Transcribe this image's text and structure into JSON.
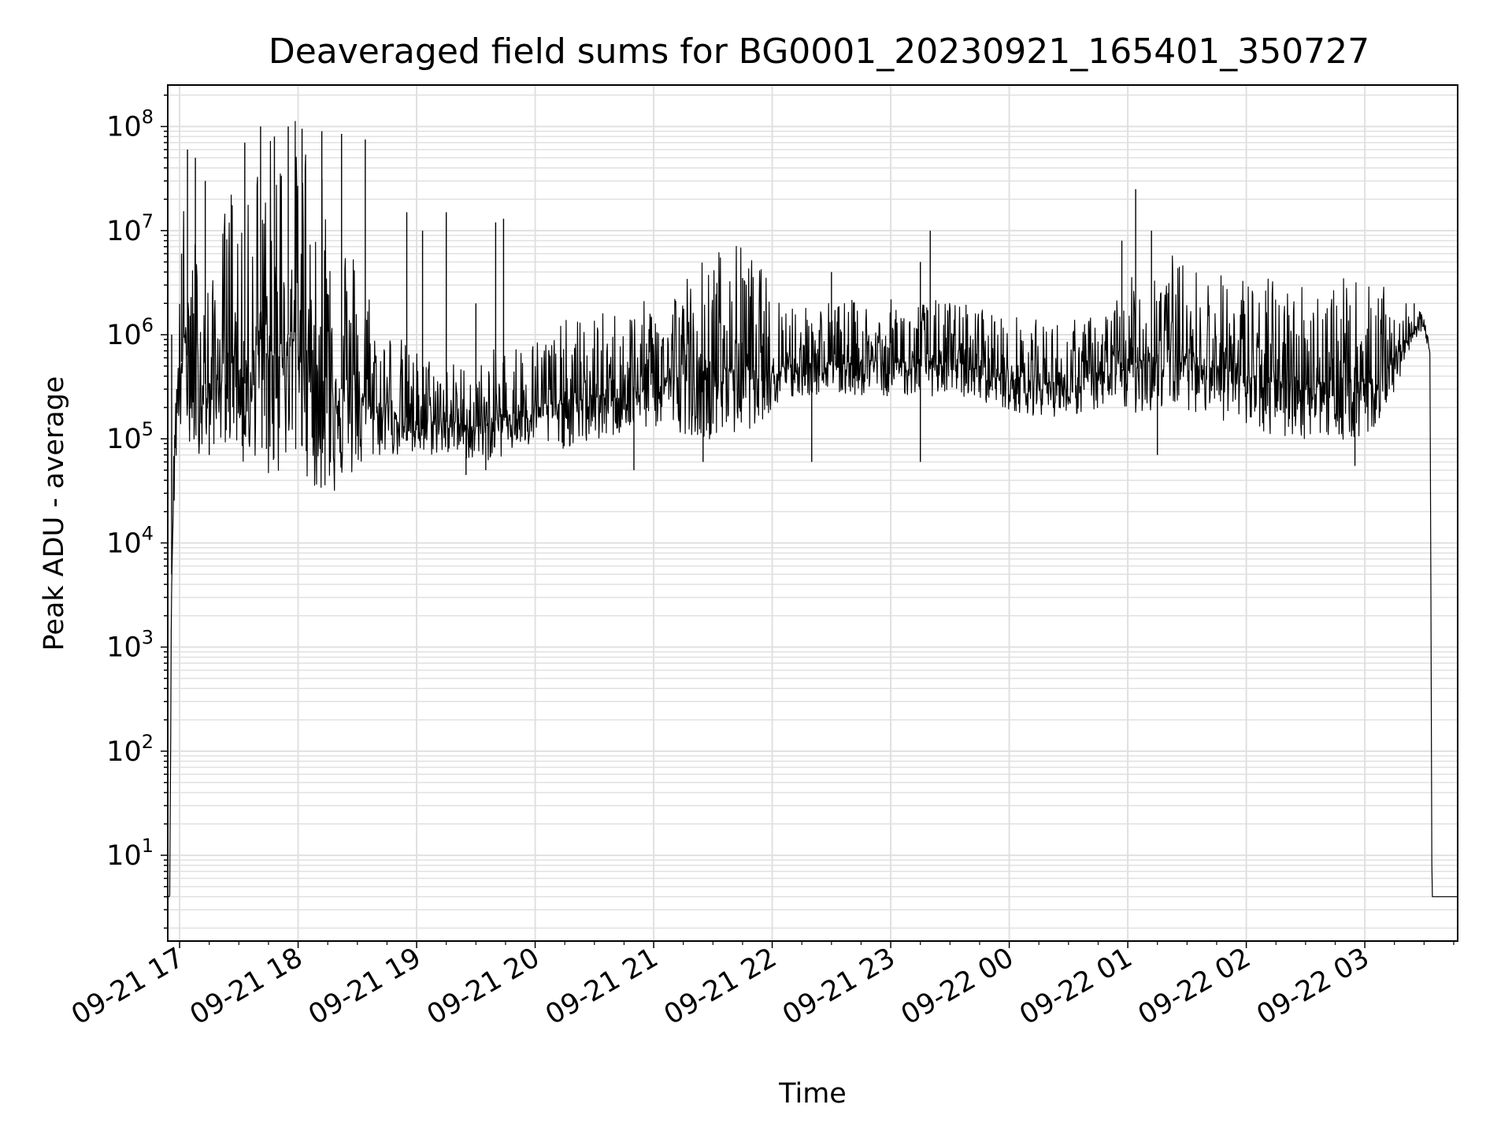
{
  "chart_data": {
    "type": "line",
    "title": "Deaveraged field sums for BG0001_20230921_165401_350727",
    "xlabel": "Time",
    "ylabel": "Peak ADU - average",
    "y_scale": "log",
    "ylim": [
      1.5,
      250000000
    ],
    "xlim": [
      "2023-09-21 16:54",
      "2023-09-22 03:47"
    ],
    "grid": "major and minor",
    "x_tick_labels": [
      "09-21 17",
      "09-21 18",
      "09-21 19",
      "09-21 20",
      "09-21 21",
      "09-21 22",
      "09-21 23",
      "09-22 00",
      "09-22 01",
      "09-22 02",
      "09-22 03"
    ],
    "x_tick_times": [
      "2023-09-21 17:00",
      "2023-09-21 18:00",
      "2023-09-21 19:00",
      "2023-09-21 20:00",
      "2023-09-21 21:00",
      "2023-09-21 22:00",
      "2023-09-21 23:00",
      "2023-09-22 00:00",
      "2023-09-22 01:00",
      "2023-09-22 02:00",
      "2023-09-22 03:00"
    ],
    "y_tick_exponents": [
      "1",
      "2",
      "3",
      "4",
      "5",
      "6",
      "7",
      "8"
    ],
    "line_color": "#000000",
    "grid_color": "#e0e0e0",
    "series": [
      {
        "x": [
          "2023-09-21 16:54",
          "2023-09-21 16:55",
          "2023-09-21 16:56",
          "2023-09-21 16:57",
          "2023-09-21 16:58",
          "2023-09-21 17:00",
          "2023-09-21 17:02",
          "2023-09-21 17:05",
          "2023-09-21 17:08",
          "2023-09-21 17:12",
          "2023-09-21 17:16",
          "2023-09-21 17:20",
          "2023-09-21 17:24",
          "2023-09-21 17:28",
          "2023-09-21 17:32",
          "2023-09-21 17:36",
          "2023-09-21 17:40",
          "2023-09-21 17:45",
          "2023-09-21 17:50",
          "2023-09-21 17:55",
          "2023-09-21 18:00",
          "2023-09-21 18:05",
          "2023-09-21 18:10",
          "2023-09-21 18:15",
          "2023-09-21 18:20",
          "2023-09-21 18:25",
          "2023-09-21 18:30",
          "2023-09-21 18:35",
          "2023-09-21 18:40",
          "2023-09-21 18:45",
          "2023-09-21 18:50",
          "2023-09-21 18:55",
          "2023-09-21 19:00",
          "2023-09-21 19:10",
          "2023-09-21 19:20",
          "2023-09-21 19:30",
          "2023-09-21 19:40",
          "2023-09-21 19:50",
          "2023-09-21 20:00",
          "2023-09-21 20:15",
          "2023-09-21 20:30",
          "2023-09-21 20:45",
          "2023-09-21 21:00",
          "2023-09-21 21:15",
          "2023-09-21 21:30",
          "2023-09-21 21:45",
          "2023-09-21 22:00",
          "2023-09-21 22:15",
          "2023-09-21 22:30",
          "2023-09-21 22:45",
          "2023-09-21 23:00",
          "2023-09-21 23:15",
          "2023-09-21 23:30",
          "2023-09-21 23:45",
          "2023-09-22 00:00",
          "2023-09-22 00:15",
          "2023-09-22 00:30",
          "2023-09-22 00:45",
          "2023-09-22 01:00",
          "2023-09-22 01:10",
          "2023-09-22 01:20",
          "2023-09-22 01:30",
          "2023-09-22 01:45",
          "2023-09-22 02:00",
          "2023-09-22 02:15",
          "2023-09-22 02:30",
          "2023-09-22 02:45",
          "2023-09-22 03:00",
          "2023-09-22 03:10",
          "2023-09-22 03:20",
          "2023-09-22 03:25",
          "2023-09-22 03:30",
          "2023-09-22 03:33",
          "2023-09-22 03:34",
          "2023-09-22 03:40",
          "2023-09-22 03:47"
        ],
        "base": [
          4,
          4,
          5000,
          30000,
          150000,
          300000,
          1000000,
          500000,
          400000,
          350000,
          300000,
          400000,
          700000,
          800000,
          300000,
          500000,
          1000000,
          600000,
          700000,
          1000000,
          800000,
          700000,
          500000,
          400000,
          300000,
          300000,
          250000,
          250000,
          200000,
          200000,
          180000,
          160000,
          150000,
          150000,
          140000,
          130000,
          150000,
          180000,
          200000,
          220000,
          250000,
          300000,
          350000,
          400000,
          450000,
          500000,
          500000,
          550000,
          550000,
          550000,
          550000,
          550000,
          550000,
          500000,
          400000,
          350000,
          350000,
          400000,
          500000,
          600000,
          700000,
          600000,
          500000,
          400000,
          350000,
          350000,
          350000,
          350000,
          450000,
          800000,
          1200000,
          1200000,
          700000,
          4,
          4,
          4
        ],
        "spread_decades": [
          0,
          0,
          0.3,
          0.5,
          0.8,
          1.0,
          1.3,
          1.4,
          1.4,
          1.2,
          1.0,
          1.2,
          1.6,
          1.8,
          1.4,
          1.8,
          2.0,
          2.2,
          2.2,
          2.2,
          2.2,
          2.2,
          2.2,
          2.2,
          1.8,
          1.6,
          1.4,
          1.2,
          0.9,
          0.8,
          0.8,
          0.7,
          0.7,
          0.6,
          0.6,
          0.6,
          0.7,
          0.7,
          0.7,
          0.8,
          0.8,
          0.8,
          0.8,
          1.0,
          1.2,
          1.2,
          0.8,
          0.6,
          0.6,
          0.6,
          0.6,
          0.6,
          0.6,
          0.6,
          0.6,
          0.6,
          0.6,
          0.6,
          0.8,
          1.0,
          1.0,
          0.9,
          0.9,
          1.0,
          1.0,
          1.0,
          1.0,
          1.0,
          0.8,
          0.4,
          0.2,
          0.1,
          0.1,
          0,
          0,
          0
        ]
      }
    ],
    "spikes": [
      {
        "x": "2023-09-21 16:56",
        "y": 1000000
      },
      {
        "x": "2023-09-21 17:01",
        "y": 6000000
      },
      {
        "x": "2023-09-21 17:04",
        "y": 60000000
      },
      {
        "x": "2023-09-21 17:08",
        "y": 50000000
      },
      {
        "x": "2023-09-21 17:13",
        "y": 30000000
      },
      {
        "x": "2023-09-21 17:33",
        "y": 70000000
      },
      {
        "x": "2023-09-21 17:41",
        "y": 100000000
      },
      {
        "x": "2023-09-21 17:48",
        "y": 80000000
      },
      {
        "x": "2023-09-21 17:55",
        "y": 100000000
      },
      {
        "x": "2023-09-21 18:02",
        "y": 95000000
      },
      {
        "x": "2023-09-21 18:12",
        "y": 90000000
      },
      {
        "x": "2023-09-21 18:22",
        "y": 85000000
      },
      {
        "x": "2023-09-21 18:34",
        "y": 75000000
      },
      {
        "x": "2023-09-21 18:55",
        "y": 15000000
      },
      {
        "x": "2023-09-21 19:03",
        "y": 10000000
      },
      {
        "x": "2023-09-21 19:15",
        "y": 15000000
      },
      {
        "x": "2023-09-21 19:30",
        "y": 2000000
      },
      {
        "x": "2023-09-21 19:40",
        "y": 12000000
      },
      {
        "x": "2023-09-21 19:44",
        "y": 13000000
      },
      {
        "x": "2023-09-21 21:45",
        "y": 3500000
      },
      {
        "x": "2023-09-21 22:30",
        "y": 4000000
      },
      {
        "x": "2023-09-21 23:15",
        "y": 5000000
      },
      {
        "x": "2023-09-21 23:20",
        "y": 10000000
      },
      {
        "x": "2023-09-22 00:57",
        "y": 8000000
      },
      {
        "x": "2023-09-22 01:04",
        "y": 25000000
      },
      {
        "x": "2023-09-22 01:12",
        "y": 10000000
      },
      {
        "x": "2023-09-22 03:25",
        "y": 2000000
      }
    ],
    "dips": [
      {
        "x": "2023-09-21 16:55",
        "y": 4
      },
      {
        "x": "2023-09-21 17:05",
        "y": 120000
      },
      {
        "x": "2023-09-21 17:15",
        "y": 70000
      },
      {
        "x": "2023-09-21 17:44",
        "y": 80000
      },
      {
        "x": "2023-09-21 19:25",
        "y": 45000
      },
      {
        "x": "2023-09-21 19:35",
        "y": 50000
      },
      {
        "x": "2023-09-21 20:50",
        "y": 50000
      },
      {
        "x": "2023-09-21 21:25",
        "y": 60000
      },
      {
        "x": "2023-09-21 22:20",
        "y": 60000
      },
      {
        "x": "2023-09-21 23:15",
        "y": 60000
      },
      {
        "x": "2023-09-22 01:15",
        "y": 70000
      },
      {
        "x": "2023-09-22 02:55",
        "y": 55000
      }
    ]
  }
}
